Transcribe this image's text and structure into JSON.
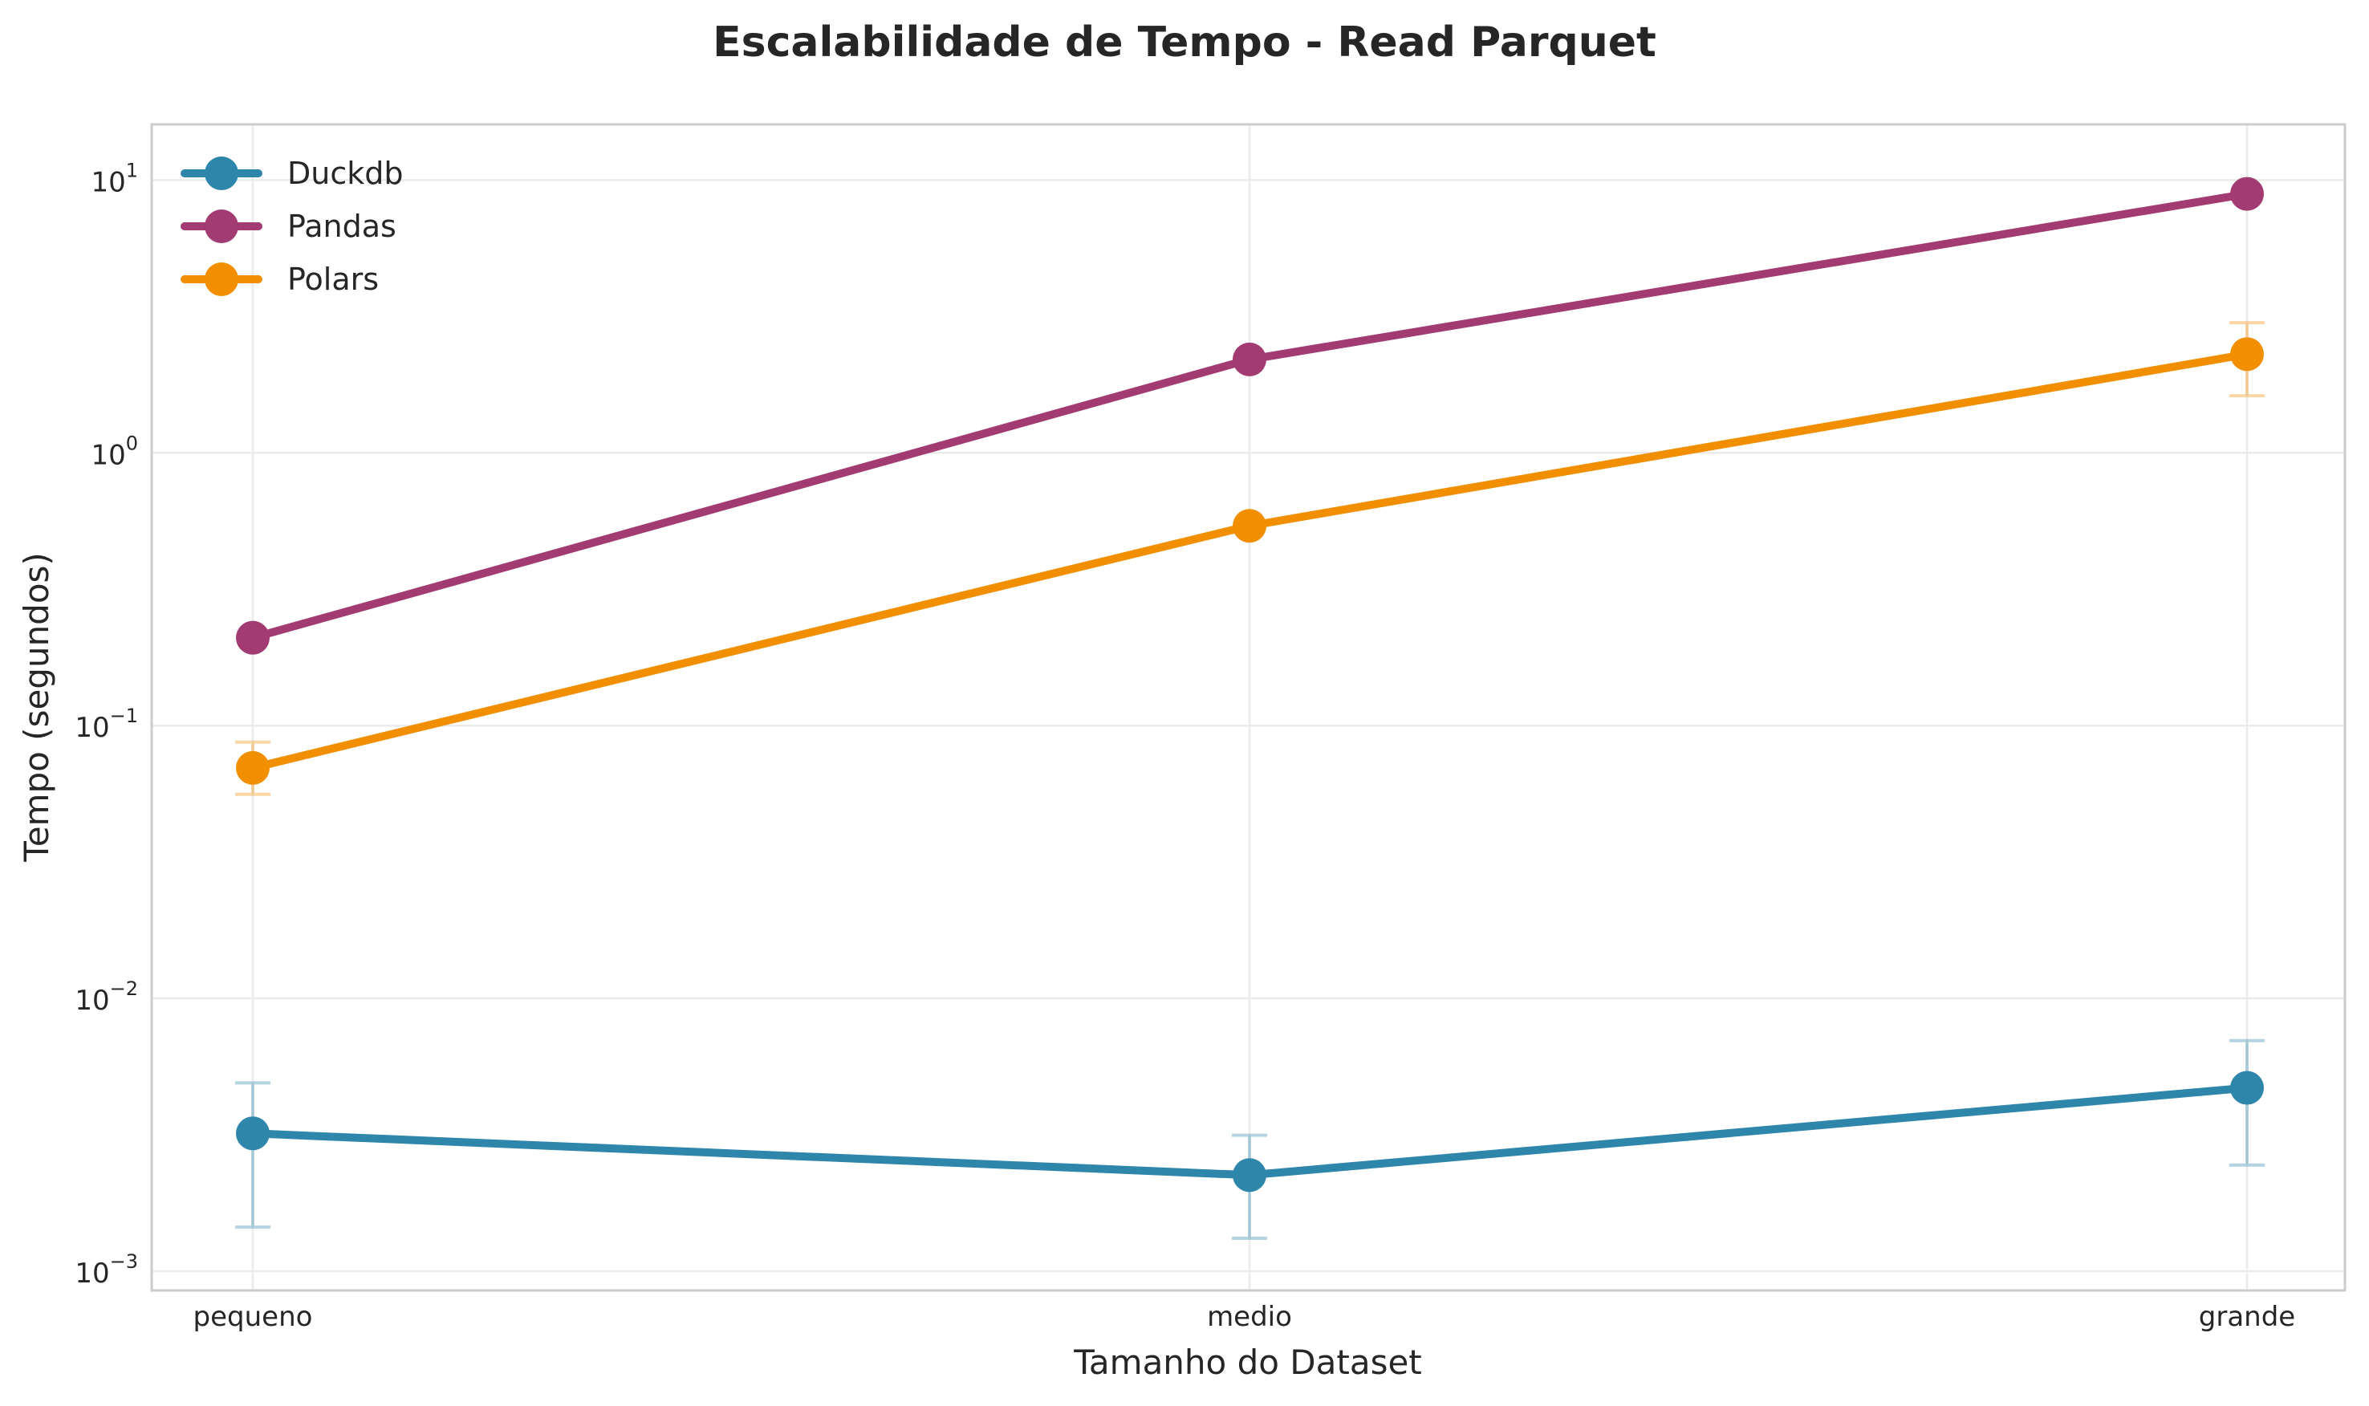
{
  "chart_data": {
    "type": "line",
    "title": "Escalabilidade de Tempo - Read Parquet",
    "xlabel": "Tamanho do Dataset",
    "ylabel": "Tempo (segundos)",
    "yscale": "log",
    "ylim": [
      0.00085,
      16
    ],
    "categories": [
      "pequeno",
      "medio",
      "grande"
    ],
    "yticks": [
      {
        "value": 0.001,
        "exp": "-3"
      },
      {
        "value": 0.01,
        "exp": "-2"
      },
      {
        "value": 0.1,
        "exp": "-1"
      },
      {
        "value": 1,
        "exp": "0"
      },
      {
        "value": 10,
        "exp": "1"
      }
    ],
    "grid": true,
    "legend_position": "top-left",
    "series": [
      {
        "name": "Duckdb",
        "color": "#2e86ab",
        "values": [
          0.0032,
          0.00225,
          0.0047
        ],
        "err_low": [
          0.00145,
          0.00132,
          0.00245
        ],
        "err_high": [
          0.0049,
          0.00315,
          0.007
        ]
      },
      {
        "name": "Pandas",
        "color": "#a23b72",
        "values": [
          0.21,
          2.2,
          8.9
        ],
        "err_low": [
          0.21,
          2.2,
          8.9
        ],
        "err_high": [
          0.21,
          2.2,
          8.9
        ]
      },
      {
        "name": "Polars",
        "color": "#f18f01",
        "values": [
          0.07,
          0.54,
          2.3
        ],
        "err_low": [
          0.056,
          0.54,
          1.62
        ],
        "err_high": [
          0.087,
          0.54,
          3.0
        ]
      }
    ]
  }
}
